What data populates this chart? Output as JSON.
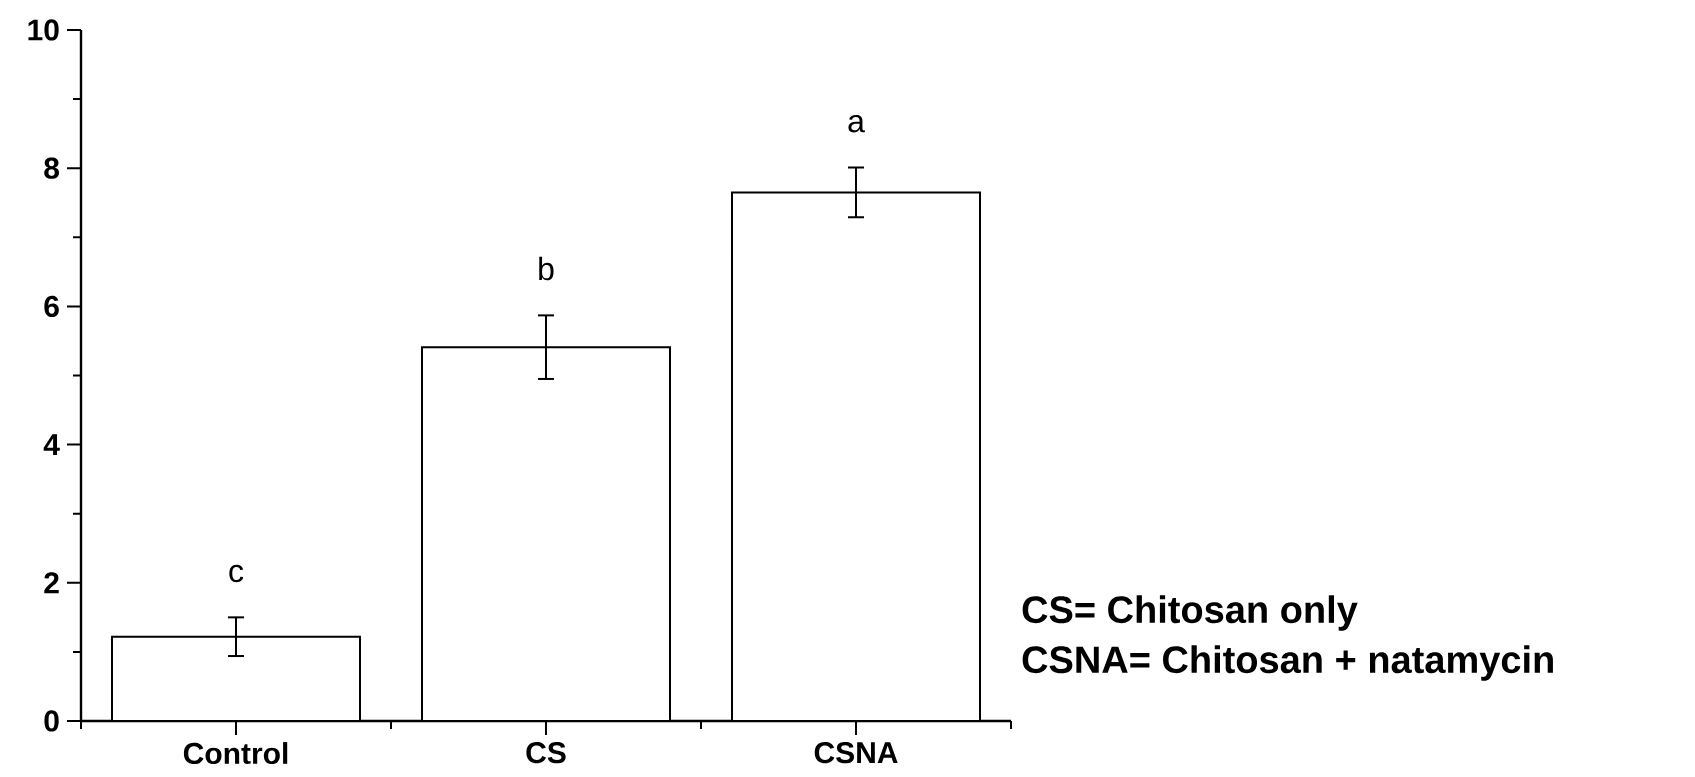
{
  "chart_data": {
    "type": "bar",
    "categories": [
      "Control",
      "CS",
      "CSNA"
    ],
    "values": [
      1.22,
      5.41,
      7.65
    ],
    "errors": [
      0.28,
      0.46,
      0.36
    ],
    "color": "#ffffff",
    "ylim": [
      0,
      10
    ],
    "yticks": [
      0,
      2,
      4,
      6,
      8,
      10
    ],
    "grid": false,
    "annotations": [
      "c",
      "b",
      "a",
      "CS= Chitosan only",
      "CSNA= Chitosan + natamycin"
    ]
  }
}
